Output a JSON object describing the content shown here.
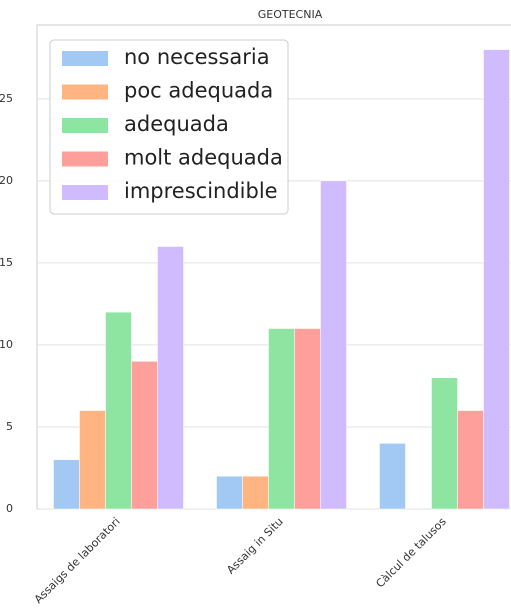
{
  "chart_data": {
    "type": "bar",
    "title": "GEOTECNIA",
    "categories": [
      "Assaigs de laboratori",
      "Assaig in Situ",
      "Càlcul de talusos"
    ],
    "series": [
      {
        "name": "no necessaria",
        "color": "#a1c9f4",
        "values": [
          3,
          2,
          4
        ]
      },
      {
        "name": "poc adequada",
        "color": "#ffb482",
        "values": [
          6,
          2,
          0
        ]
      },
      {
        "name": "adequada",
        "color": "#8de5a1",
        "values": [
          12,
          11,
          8
        ]
      },
      {
        "name": "molt adequada",
        "color": "#ff9f9b",
        "values": [
          9,
          11,
          6
        ]
      },
      {
        "name": "imprescindible",
        "color": "#d0bbff",
        "values": [
          16,
          20,
          28
        ]
      }
    ],
    "ylim": [
      0,
      29.5
    ],
    "yticks": [
      0,
      5,
      10,
      15,
      20,
      25
    ],
    "grid": true,
    "legend": "upper left"
  }
}
